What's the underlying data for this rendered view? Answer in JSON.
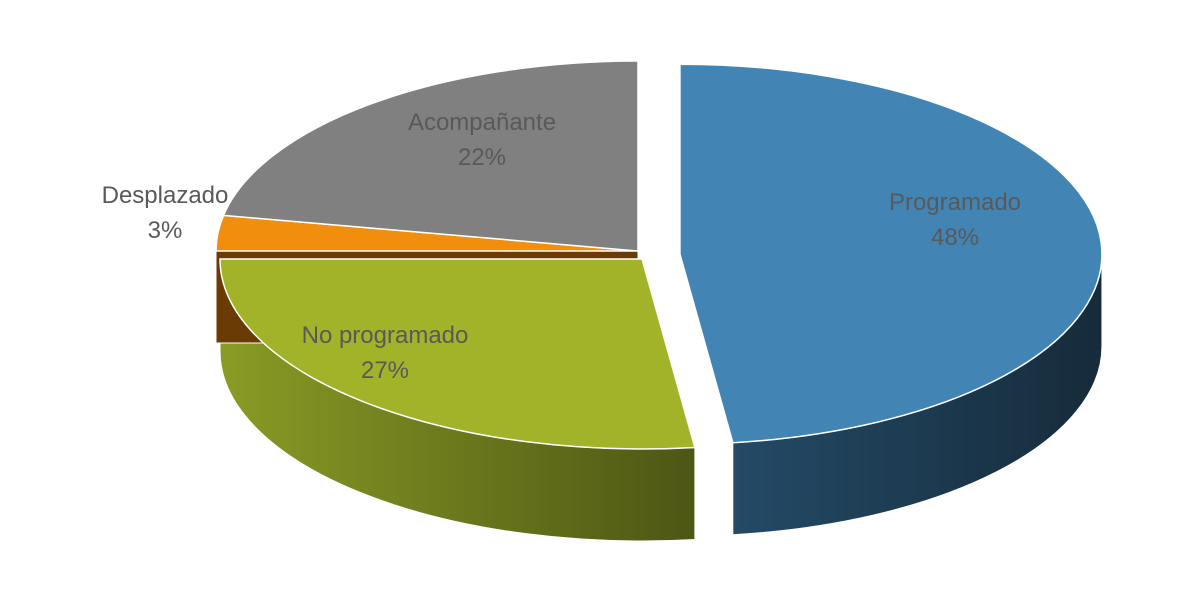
{
  "chart_data": {
    "type": "pie",
    "style": "3d-exploded",
    "title": "",
    "slices": [
      {
        "label": "Programado",
        "value": 48,
        "percent_label": "48%",
        "color": "#4285B4",
        "side_color": "#1B3549"
      },
      {
        "label": "No programado",
        "value": 27,
        "percent_label": "27%",
        "color": "#A2B32A",
        "side_color": "#5E6A1A"
      },
      {
        "label": "Desplazado",
        "value": 3,
        "percent_label": "3%",
        "color": "#F28E0E",
        "side_color": "#6B3B06"
      },
      {
        "label": "Acompañante",
        "value": 22,
        "percent_label": "22%",
        "color": "#808080",
        "side_color": "#3A3A3A"
      }
    ],
    "label_color": "#595959"
  }
}
